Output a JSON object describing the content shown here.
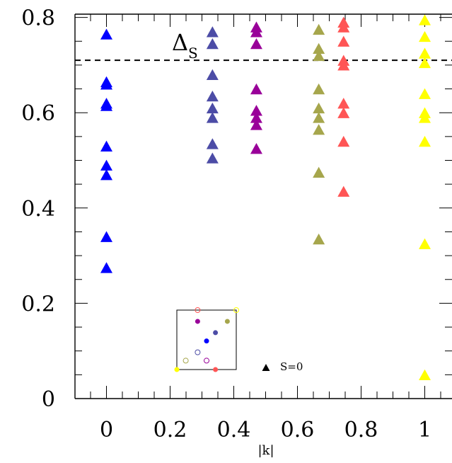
{
  "chart_data": {
    "type": "scatter",
    "title": "",
    "xlabel": "|k|",
    "ylabel": "",
    "xlim": [
      -0.1,
      1.09
    ],
    "ylim": [
      0.0,
      0.81
    ],
    "x_ticks": [
      "0",
      "0.2",
      "0.4",
      "0.6",
      "0.8",
      "1"
    ],
    "x_tick_values": [
      0,
      0.2,
      0.4,
      0.6,
      0.8,
      1.0
    ],
    "y_ticks": [
      "0",
      "0.2",
      "0.4",
      "0.6",
      "0.8"
    ],
    "y_tick_values": [
      0,
      0.2,
      0.4,
      0.6,
      0.8
    ],
    "marker": "triangle",
    "series": [
      {
        "color": "#0000ff",
        "x": 0.0,
        "y": [
          0.765,
          0.665,
          0.66,
          0.62,
          0.615,
          0.53,
          0.49,
          0.47,
          0.34,
          0.275
        ]
      },
      {
        "color": "#4c4ca6",
        "x": 0.333,
        "y": [
          0.77,
          0.745,
          0.68,
          0.635,
          0.61,
          0.59,
          0.535,
          0.505
        ]
      },
      {
        "color": "#990099",
        "x": 0.471,
        "y": [
          0.78,
          0.77,
          0.745,
          0.65,
          0.605,
          0.59,
          0.575,
          0.525
        ]
      },
      {
        "color": "#a6a64c",
        "x": 0.667,
        "y": [
          0.775,
          0.735,
          0.72,
          0.65,
          0.61,
          0.59,
          0.565,
          0.475,
          0.335
        ]
      },
      {
        "color": "#ff5555",
        "x": 0.745,
        "y": [
          0.79,
          0.78,
          0.75,
          0.71,
          0.7,
          0.62,
          0.6,
          0.54,
          0.435
        ]
      },
      {
        "color": "#ffff00",
        "x": 1.0,
        "y": [
          0.795,
          0.76,
          0.725,
          0.705,
          0.64,
          0.6,
          0.59,
          0.54,
          0.325,
          0.05
        ]
      }
    ],
    "reference_line": {
      "y": 0.71,
      "style": "dashed",
      "label_main": "Δ",
      "label_sub": "S"
    },
    "legend_text": "S=0",
    "inset": {
      "filled": [
        {
          "color": "#990099",
          "i": 0.35,
          "j": 0.81
        },
        {
          "color": "#a6a64c",
          "i": 0.85,
          "j": 0.81
        },
        {
          "color": "#4c4ca6",
          "i": 0.65,
          "j": 0.62
        },
        {
          "color": "#0000ff",
          "i": 0.5,
          "j": 0.48
        },
        {
          "color": "#ffff00",
          "i": 0.0,
          "j": 0.0
        },
        {
          "color": "#ff5555",
          "i": 0.65,
          "j": 0.0
        }
      ],
      "open": [
        {
          "color": "#ff5555",
          "i": 0.35,
          "j": 1.0
        },
        {
          "color": "#ffff00",
          "i": 1.0,
          "j": 1.0
        },
        {
          "color": "#4c4ca6",
          "i": 0.35,
          "j": 0.29
        },
        {
          "color": "#a6a64c",
          "i": 0.15,
          "j": 0.15
        },
        {
          "color": "#990099",
          "i": 0.5,
          "j": 0.15
        }
      ]
    }
  }
}
